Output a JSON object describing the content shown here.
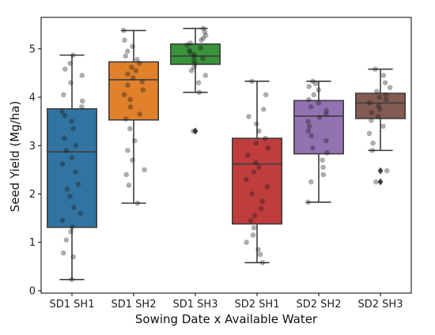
{
  "chart_data": {
    "type": "box",
    "xlabel": "Sowing Date x Available Water",
    "ylabel": "Seed Yield (Mg/ha)",
    "ylim": [
      -0.05,
      5.65
    ],
    "yticks": [
      0,
      1,
      2,
      3,
      4,
      5
    ],
    "grid": false,
    "legend": "none",
    "categories": [
      "SD1 SH1",
      "SD1 SH2",
      "SD1 SH3",
      "SD2 SH1",
      "SD2 SH2",
      "SD2 SH3"
    ],
    "colors": [
      "#3274a1",
      "#e1812c",
      "#3a923a",
      "#c03d3e",
      "#9372b2",
      "#845b53"
    ],
    "boxes": [
      {
        "category": "SD1 SH1",
        "whisker_low": 0.23,
        "q1": 1.31,
        "median": 2.87,
        "q3": 3.76,
        "whisker_high": 4.87,
        "outliers": []
      },
      {
        "category": "SD1 SH2",
        "whisker_low": 1.81,
        "q1": 3.53,
        "median": 4.36,
        "q3": 4.73,
        "whisker_high": 5.38,
        "outliers": []
      },
      {
        "category": "SD1 SH3",
        "whisker_low": 4.1,
        "q1": 4.68,
        "median": 4.85,
        "q3": 5.1,
        "whisker_high": 5.42,
        "outliers": [
          3.3
        ]
      },
      {
        "category": "SD2 SH1",
        "whisker_low": 0.58,
        "q1": 1.38,
        "median": 2.62,
        "q3": 3.15,
        "whisker_high": 4.33,
        "outliers": []
      },
      {
        "category": "SD2 SH2",
        "whisker_low": 1.83,
        "q1": 2.83,
        "median": 3.61,
        "q3": 3.93,
        "whisker_high": 4.33,
        "outliers": []
      },
      {
        "category": "SD2 SH3",
        "whisker_low": 2.9,
        "q1": 3.56,
        "median": 3.88,
        "q3": 4.08,
        "whisker_high": 4.58,
        "outliers": [
          2.48,
          2.25
        ]
      }
    ],
    "points": [
      [
        0.23,
        0.7,
        0.78,
        1.05,
        1.22,
        1.32,
        1.45,
        1.6,
        1.72,
        1.95,
        2.1,
        2.2,
        2.45,
        2.62,
        2.75,
        2.9,
        3.0,
        3.15,
        3.35,
        3.5,
        3.62,
        3.7,
        3.8,
        3.92,
        4.05,
        4.3,
        4.45,
        4.58,
        4.7,
        4.87
      ],
      [
        1.81,
        2.18,
        2.4,
        2.5,
        2.7,
        2.9,
        3.1,
        3.35,
        3.55,
        3.65,
        3.8,
        3.95,
        4.05,
        4.15,
        4.25,
        4.32,
        4.4,
        4.48,
        4.55,
        4.62,
        4.7,
        4.78,
        4.85,
        4.95,
        5.05,
        5.18,
        5.38
      ],
      [
        3.3,
        4.1,
        4.3,
        4.45,
        4.55,
        4.62,
        4.7,
        4.75,
        4.8,
        4.84,
        4.88,
        4.92,
        4.97,
        5.02,
        5.08,
        5.12,
        5.18,
        5.22,
        5.28,
        5.35,
        5.42
      ],
      [
        0.58,
        0.75,
        0.85,
        1.0,
        1.15,
        1.3,
        1.45,
        1.55,
        1.7,
        1.85,
        2.0,
        2.15,
        2.3,
        2.45,
        2.55,
        2.65,
        2.8,
        2.95,
        3.05,
        3.15,
        3.3,
        3.45,
        3.6,
        3.75,
        4.05,
        4.33
      ],
      [
        1.83,
        2.25,
        2.4,
        2.55,
        2.7,
        2.85,
        2.95,
        3.1,
        3.2,
        3.3,
        3.4,
        3.5,
        3.58,
        3.65,
        3.72,
        3.8,
        3.88,
        3.95,
        4.05,
        4.15,
        4.22,
        4.28,
        4.33
      ],
      [
        2.25,
        2.48,
        2.9,
        3.05,
        3.25,
        3.4,
        3.52,
        3.6,
        3.68,
        3.75,
        3.82,
        3.88,
        3.95,
        4.0,
        4.05,
        4.12,
        4.2,
        4.3,
        4.45,
        4.58
      ]
    ]
  }
}
